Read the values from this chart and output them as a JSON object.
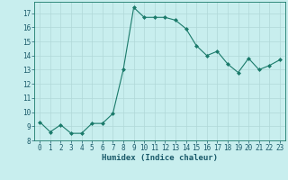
{
  "xlabel": "Humidex (Indice chaleur)",
  "x": [
    0,
    1,
    2,
    3,
    4,
    5,
    6,
    7,
    8,
    9,
    10,
    11,
    12,
    13,
    14,
    15,
    16,
    17,
    18,
    19,
    20,
    21,
    22,
    23
  ],
  "y": [
    9.3,
    8.6,
    9.1,
    8.5,
    8.5,
    9.2,
    9.2,
    9.9,
    13.0,
    17.4,
    16.7,
    16.7,
    16.7,
    16.5,
    15.9,
    14.7,
    14.0,
    14.3,
    13.4,
    12.8,
    13.8,
    13.0,
    13.3,
    13.7
  ],
  "line_color": "#1a7a6a",
  "marker": "D",
  "marker_size": 2,
  "bg_color": "#c8eeee",
  "grid_color": "#b0d8d8",
  "ylim": [
    8,
    17.8
  ],
  "yticks": [
    8,
    9,
    10,
    11,
    12,
    13,
    14,
    15,
    16,
    17
  ],
  "xticks": [
    0,
    1,
    2,
    3,
    4,
    5,
    6,
    7,
    8,
    9,
    10,
    11,
    12,
    13,
    14,
    15,
    16,
    17,
    18,
    19,
    20,
    21,
    22,
    23
  ],
  "tick_fontsize": 5.5,
  "xlabel_fontsize": 6.5,
  "label_color": "#1a5a6a"
}
